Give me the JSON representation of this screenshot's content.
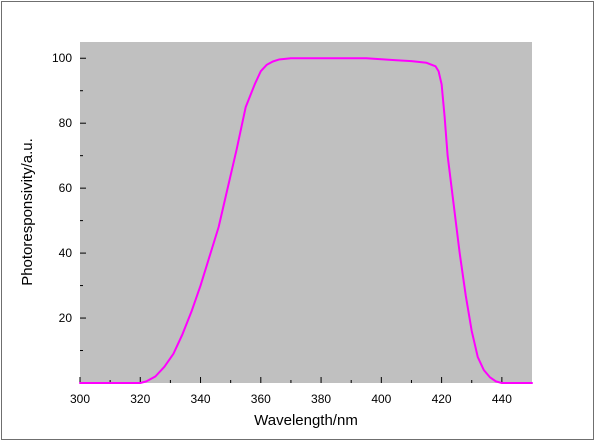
{
  "chart_data": {
    "type": "line",
    "title": "",
    "xlabel": "Wavelength/nm",
    "ylabel": "Photoresponsivity/a.u.",
    "xlim": [
      300,
      450
    ],
    "ylim": [
      0,
      105
    ],
    "xticks": [
      300,
      320,
      340,
      360,
      380,
      400,
      420,
      440
    ],
    "yticks": [
      20,
      40,
      60,
      80,
      100
    ],
    "grid": false,
    "legend": "none",
    "plot_background": "#c0c0c0",
    "figure_background": "#ffffff",
    "series": [
      {
        "color": "#ff00ff",
        "x": [
          300,
          320,
          322,
          325,
          328,
          331,
          334,
          337,
          340,
          343,
          346,
          349,
          352,
          355,
          358,
          360,
          362,
          364,
          366,
          368,
          370,
          375,
          380,
          385,
          390,
          395,
          400,
          405,
          410,
          415,
          418,
          419,
          420,
          421,
          422,
          424,
          426,
          428,
          430,
          432,
          434,
          436,
          438,
          440,
          450
        ],
        "y": [
          0,
          0,
          0.5,
          2,
          5,
          9,
          15,
          22,
          30,
          39,
          48,
          60,
          72,
          85,
          92,
          96,
          98,
          99,
          99.6,
          99.8,
          100,
          100,
          100,
          100,
          100,
          100,
          99.7,
          99.4,
          99.1,
          98.6,
          97.5,
          96,
          92,
          82,
          70,
          55,
          40,
          27,
          16,
          8,
          4,
          1.8,
          0.5,
          0,
          0
        ]
      }
    ]
  }
}
